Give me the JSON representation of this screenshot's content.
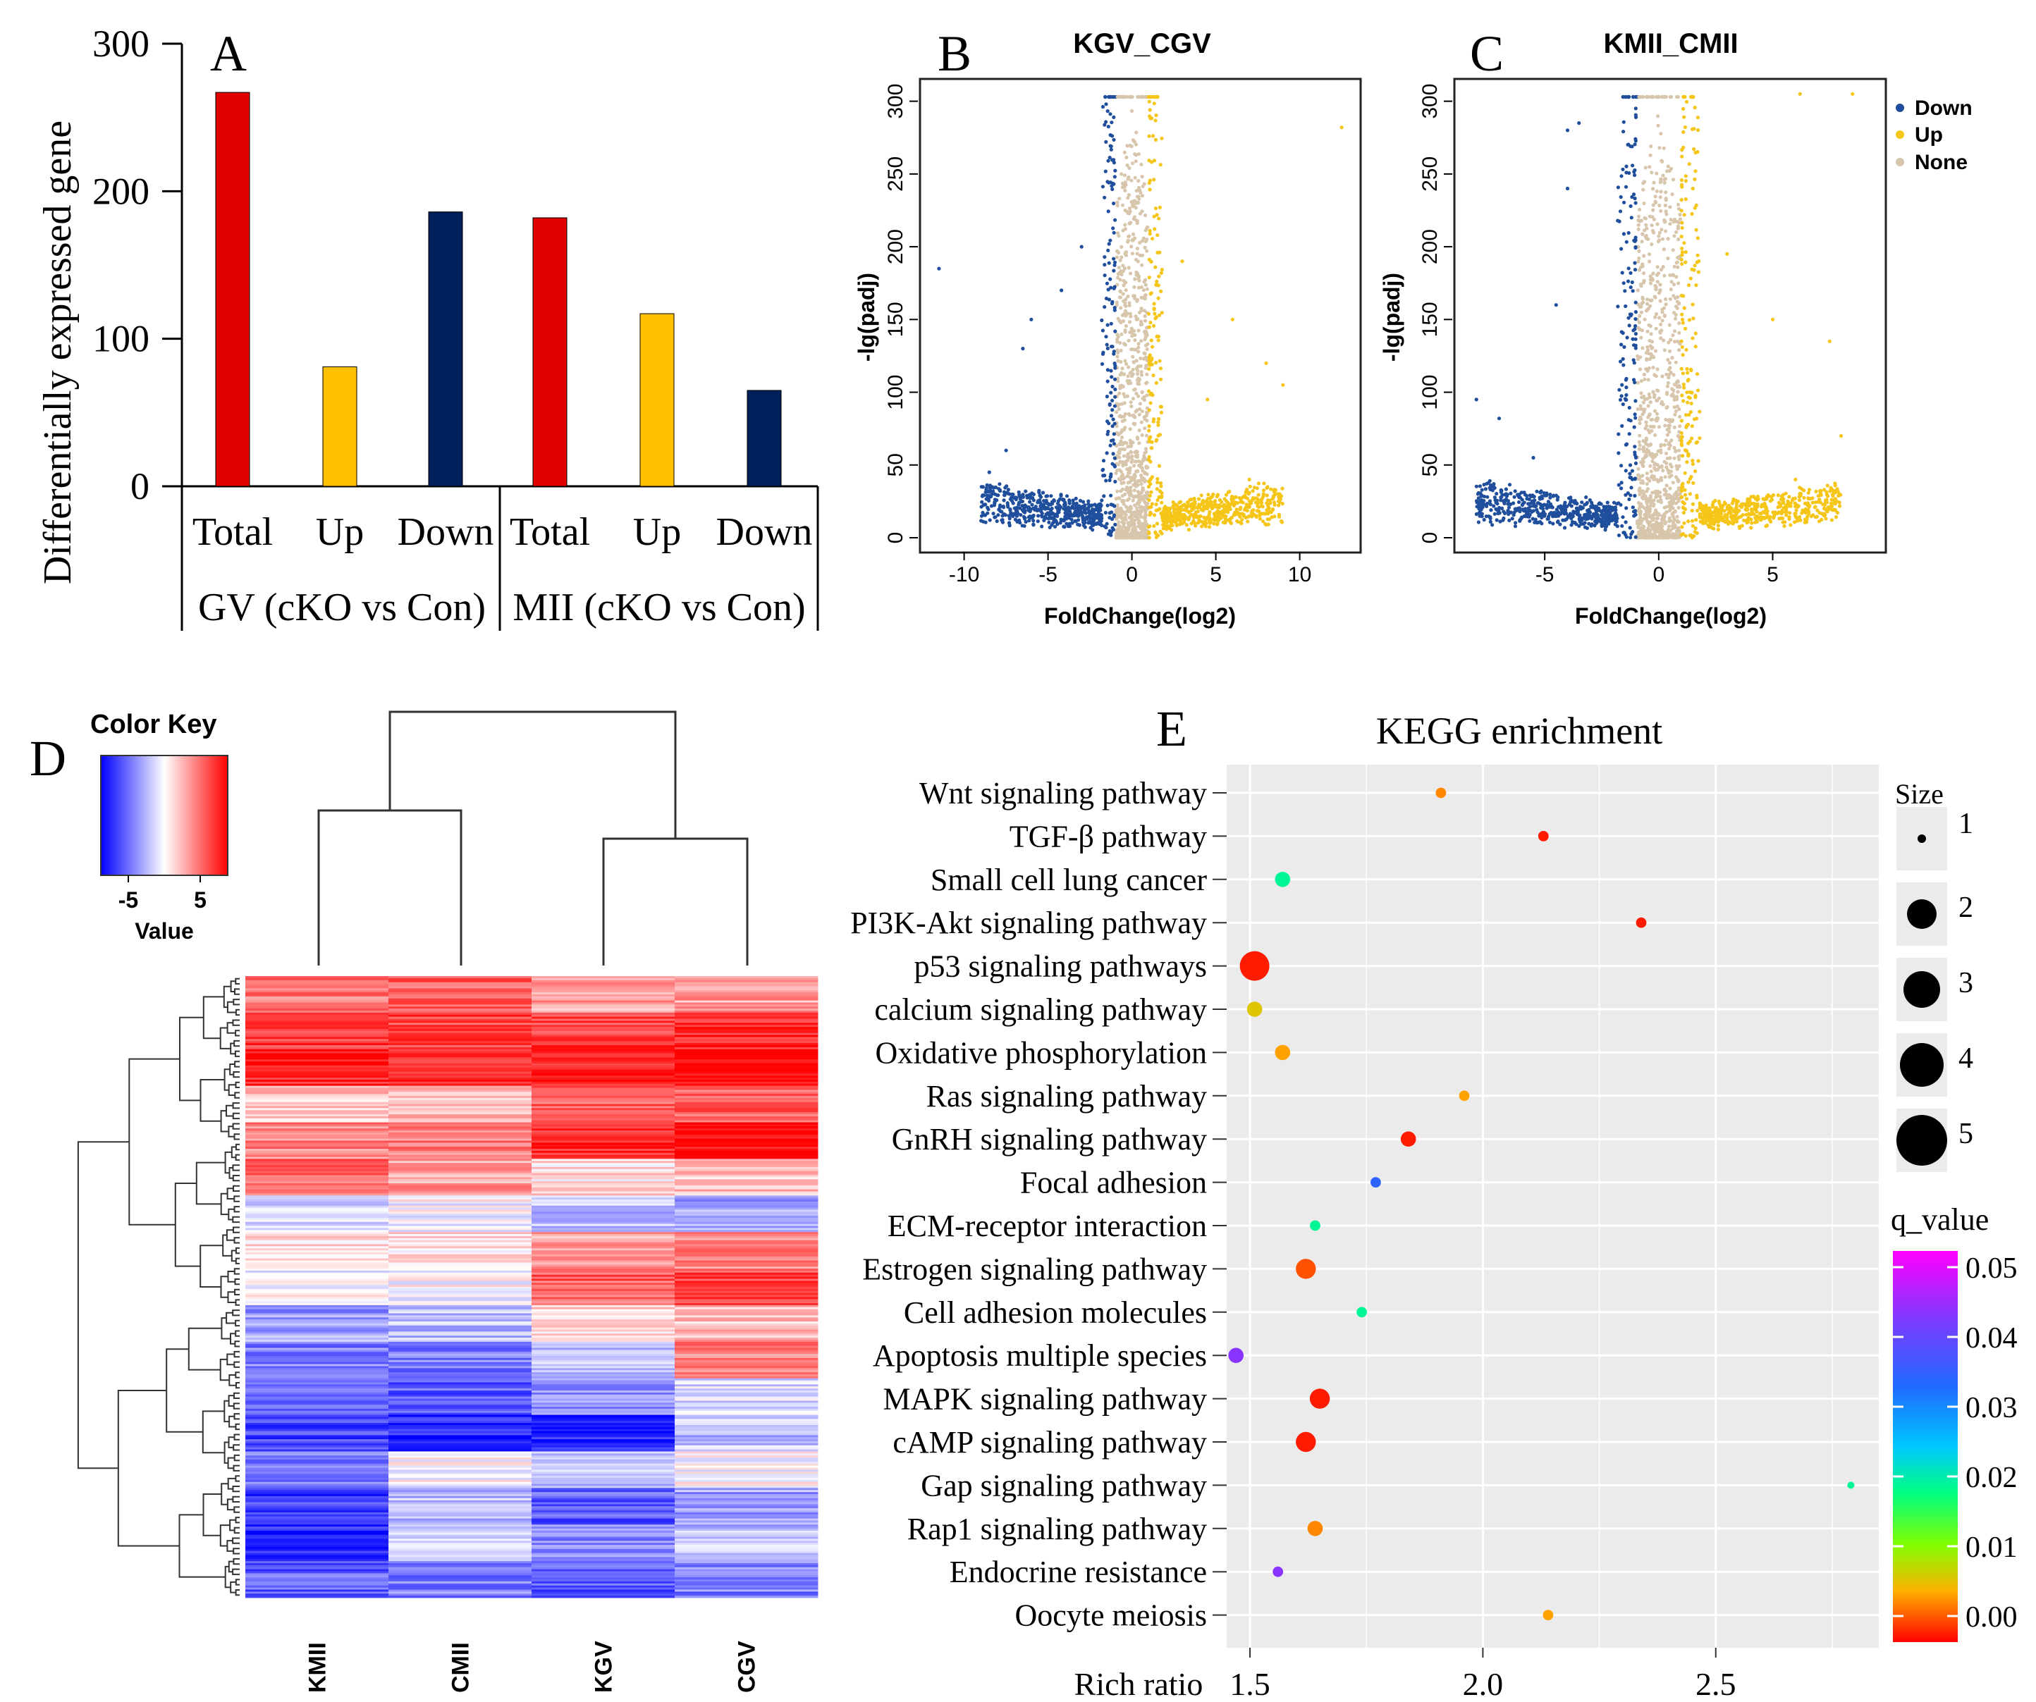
{
  "colors": {
    "total": "#e00000",
    "up": "#ffc000",
    "down": "#00205b",
    "volcano_down": "#1f4e9c",
    "volcano_up": "#f5c518",
    "volcano_none": "#d8c6ac",
    "heat_high": "#ff0000",
    "heat_mid": "#ffffff",
    "heat_low": "#0000ff",
    "kegg_bg": "#ebebeb"
  },
  "panels": {
    "A": {
      "letter": "A",
      "ylabel": "Differentially expressed gene",
      "yticks": [
        "0",
        "100",
        "200",
        "300"
      ],
      "categories": [
        "Total",
        "Up",
        "Down",
        "Total",
        "Up",
        "Down"
      ],
      "groups": [
        "GV (cKO vs Con)",
        "MII (cKO vs Con)"
      ]
    },
    "B": {
      "letter": "B",
      "title": "KGV_CGV",
      "xlabel": "FoldChange(log2)",
      "ylabel": "-lg(padj)",
      "xticks": [
        "-10",
        "-5",
        "0",
        "5",
        "10"
      ],
      "yticks": [
        "0",
        "50",
        "100",
        "150",
        "200",
        "250",
        "300"
      ]
    },
    "C": {
      "letter": "C",
      "title": "KMII_CMII",
      "xlabel": "FoldChange(log2)",
      "ylabel": "-lg(padj)",
      "xticks": [
        "-5",
        "0",
        "5"
      ],
      "yticks": [
        "0",
        "50",
        "100",
        "150",
        "200",
        "250",
        "300"
      ]
    },
    "legend_volcano": [
      "Down",
      "Up",
      "None"
    ],
    "D": {
      "letter": "D",
      "key_title": "Color Key",
      "key_ticks": [
        "-5",
        "5"
      ],
      "key_label": "Value",
      "columns": [
        "KMII",
        "CMII",
        "KGV",
        "CGV"
      ]
    },
    "E": {
      "letter": "E",
      "title": "KEGG enrichment",
      "xlabel": "Rich ratio",
      "xticks": [
        "1.5",
        "2.0",
        "2.5"
      ],
      "size_title": "Size",
      "size_labels": [
        "1",
        "2",
        "3",
        "4",
        "5"
      ],
      "q_title": "q_value",
      "q_labels": [
        "0.05",
        "0.04",
        "0.03",
        "0.02",
        "0.01",
        "0.00"
      ]
    }
  },
  "chart_data": [
    {
      "type": "bar",
      "id": "A",
      "title": "",
      "ylabel": "Differentially expressed gene",
      "ylim": [
        0,
        300
      ],
      "categories": [
        "GV Total",
        "GV Up",
        "GV Down",
        "MII Total",
        "MII Up",
        "MII Down"
      ],
      "values": [
        267,
        81,
        186,
        182,
        117,
        65
      ]
    },
    {
      "type": "scatter",
      "id": "B",
      "title": "KGV_CGV",
      "xlabel": "FoldChange(log2)",
      "ylabel": "-lg(padj)",
      "xlim": [
        -12,
        13
      ],
      "ylim": [
        0,
        310
      ],
      "xmax_abs": 9,
      "series": [
        "Down",
        "Up",
        "None"
      ],
      "outliers": [
        {
          "x": -11.5,
          "y": 185,
          "c": "down"
        },
        {
          "x": -6,
          "y": 150,
          "c": "down"
        },
        {
          "x": -6.5,
          "y": 130,
          "c": "down"
        },
        {
          "x": -8.5,
          "y": 45,
          "c": "down"
        },
        {
          "x": -7.5,
          "y": 60,
          "c": "down"
        },
        {
          "x": 6,
          "y": 150,
          "c": "up"
        },
        {
          "x": 12.5,
          "y": 282,
          "c": "up"
        },
        {
          "x": 9,
          "y": 105,
          "c": "up"
        },
        {
          "x": 7,
          "y": 40,
          "c": "up"
        },
        {
          "x": 8,
          "y": 120,
          "c": "up"
        },
        {
          "x": -3,
          "y": 200,
          "c": "down"
        },
        {
          "x": 3,
          "y": 190,
          "c": "up"
        },
        {
          "x": 4.5,
          "y": 95,
          "c": "up"
        },
        {
          "x": -4.2,
          "y": 170,
          "c": "down"
        }
      ]
    },
    {
      "type": "scatter",
      "id": "C",
      "title": "KMII_CMII",
      "xlabel": "FoldChange(log2)",
      "ylabel": "-lg(padj)",
      "xlim": [
        -8.5,
        9.5
      ],
      "ylim": [
        0,
        310
      ],
      "xmax_abs": 8,
      "series": [
        "Down",
        "Up",
        "None"
      ],
      "outliers": [
        {
          "x": -4,
          "y": 280,
          "c": "down"
        },
        {
          "x": -3.5,
          "y": 285,
          "c": "down"
        },
        {
          "x": -4,
          "y": 240,
          "c": "down"
        },
        {
          "x": -4.5,
          "y": 160,
          "c": "down"
        },
        {
          "x": -8,
          "y": 95,
          "c": "down"
        },
        {
          "x": -7,
          "y": 82,
          "c": "down"
        },
        {
          "x": -5.5,
          "y": 55,
          "c": "down"
        },
        {
          "x": 5,
          "y": 150,
          "c": "up"
        },
        {
          "x": 7.5,
          "y": 135,
          "c": "up"
        },
        {
          "x": 8,
          "y": 70,
          "c": "up"
        },
        {
          "x": 3,
          "y": 195,
          "c": "up"
        },
        {
          "x": 1.5,
          "y": 240,
          "c": "up"
        },
        {
          "x": 6,
          "y": 40,
          "c": "up"
        },
        {
          "x": 8.5,
          "y": 305,
          "c": "up"
        },
        {
          "x": 6.2,
          "y": 305,
          "c": "up"
        }
      ]
    },
    {
      "type": "heatmap",
      "id": "D",
      "columns": [
        "KMII",
        "CMII",
        "KGV",
        "CGV"
      ],
      "value_range": [
        -8,
        8
      ],
      "rows_top_to_bottom": [
        [
          4,
          5,
          3,
          3
        ],
        [
          6,
          6,
          6,
          7
        ],
        [
          7,
          7,
          7,
          8
        ],
        [
          2,
          2,
          5,
          5
        ],
        [
          4,
          4,
          7,
          8
        ],
        [
          5,
          3,
          1,
          2
        ],
        [
          -1,
          0,
          -2,
          -3
        ],
        [
          1,
          1,
          3,
          4
        ],
        [
          0,
          0,
          5,
          6
        ],
        [
          -3,
          -2,
          1,
          2
        ],
        [
          -4,
          -4,
          -2,
          4
        ],
        [
          -5,
          -5,
          -3,
          -1
        ],
        [
          -6,
          -7,
          -7,
          -2
        ],
        [
          -4,
          0,
          -2,
          0
        ],
        [
          -6,
          -2,
          -5,
          -3
        ],
        [
          -7,
          -1,
          -4,
          -2
        ],
        [
          -5,
          -4,
          -5,
          -4
        ]
      ]
    },
    {
      "type": "scatter",
      "id": "E",
      "title": "KEGG enrichment",
      "xlabel": "Rich ratio",
      "xlim": [
        1.45,
        2.85
      ],
      "pathways": [
        {
          "name": "Wnt signaling pathway",
          "rich": 1.91,
          "size": 1,
          "q": 0.005
        },
        {
          "name": "TGF-β pathway",
          "rich": 2.13,
          "size": 1,
          "q": 0.001
        },
        {
          "name": "Small cell lung cancer",
          "rich": 1.57,
          "size": 2,
          "q": 0.02
        },
        {
          "name": "PI3K-Akt signaling pathway",
          "rich": 2.34,
          "size": 1,
          "q": 0.001
        },
        {
          "name": "p53 signaling pathways",
          "rich": 1.51,
          "size": 5,
          "q": 0.001
        },
        {
          "name": "calcium signaling pathway",
          "rich": 1.51,
          "size": 2,
          "q": 0.008
        },
        {
          "name": "Oxidative phosphorylation",
          "rich": 1.57,
          "size": 2,
          "q": 0.006
        },
        {
          "name": "Ras signaling pathway",
          "rich": 1.96,
          "size": 1,
          "q": 0.006
        },
        {
          "name": "GnRH signaling pathway",
          "rich": 1.84,
          "size": 2,
          "q": 0.001
        },
        {
          "name": "Focal adhesion",
          "rich": 1.77,
          "size": 1,
          "q": 0.034
        },
        {
          "name": "ECM-receptor interaction",
          "rich": 1.64,
          "size": 1,
          "q": 0.02
        },
        {
          "name": "Estrogen signaling pathway",
          "rich": 1.62,
          "size": 3,
          "q": 0.003
        },
        {
          "name": "Cell adhesion molecules",
          "rich": 1.74,
          "size": 1,
          "q": 0.02
        },
        {
          "name": "Apoptosis multiple species",
          "rich": 1.47,
          "size": 2,
          "q": 0.042
        },
        {
          "name": "MAPK signaling pathway",
          "rich": 1.65,
          "size": 3,
          "q": 0.001
        },
        {
          "name": "cAMP signaling pathway",
          "rich": 1.62,
          "size": 3,
          "q": 0.001
        },
        {
          "name": "Gap signaling pathway",
          "rich": 2.79,
          "size": 0.3,
          "q": 0.02
        },
        {
          "name": "Rap1 signaling pathway",
          "rich": 1.64,
          "size": 2,
          "q": 0.005
        },
        {
          "name": "Endocrine resistance",
          "rich": 1.56,
          "size": 1,
          "q": 0.042
        },
        {
          "name": "Oocyte meiosis",
          "rich": 2.14,
          "size": 1,
          "q": 0.006
        }
      ]
    }
  ]
}
